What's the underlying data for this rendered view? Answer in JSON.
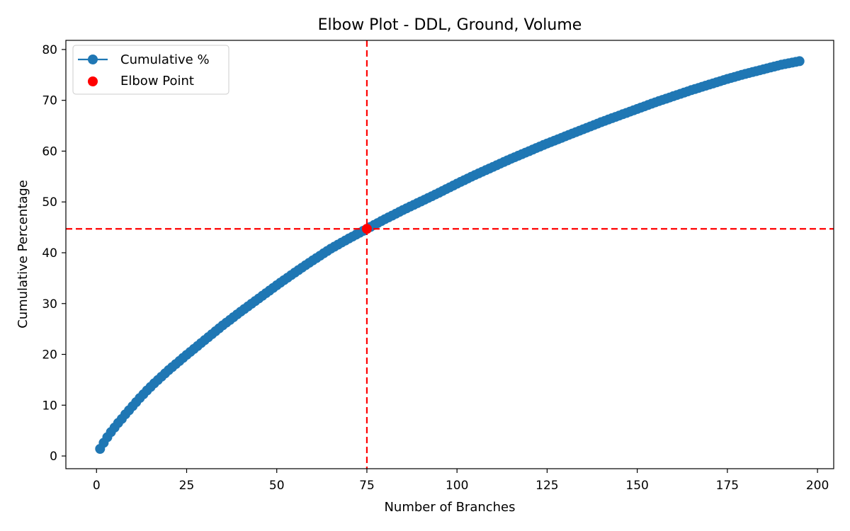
{
  "chart_data": {
    "type": "line",
    "title": "Elbow Plot - DDL, Ground, Volume",
    "xlabel": "Number of Branches",
    "ylabel": "Cumulative Percentage",
    "xlim": [
      -8.5,
      204.5
    ],
    "ylim": [
      -2.5,
      81.8
    ],
    "xticks": [
      0,
      25,
      50,
      75,
      100,
      125,
      150,
      175,
      200
    ],
    "yticks": [
      0,
      10,
      20,
      30,
      40,
      50,
      60,
      70,
      80
    ],
    "grid": false,
    "legend_position": "top-left",
    "series": [
      {
        "name": "Cumulative %",
        "color": "#1f77b4",
        "marker": "circle",
        "x": [
          1,
          2,
          3,
          4,
          5,
          6,
          7,
          8,
          9,
          10,
          12,
          14,
          16,
          18,
          20,
          25,
          30,
          35,
          40,
          45,
          50,
          55,
          60,
          65,
          70,
          75,
          80,
          85,
          90,
          95,
          100,
          105,
          110,
          115,
          120,
          125,
          130,
          135,
          140,
          145,
          150,
          155,
          160,
          165,
          170,
          175,
          180,
          185,
          190,
          195
        ],
        "y": [
          1.4,
          2.6,
          3.7,
          4.7,
          5.6,
          6.5,
          7.3,
          8.2,
          9.0,
          9.8,
          11.4,
          12.9,
          14.3,
          15.6,
          16.9,
          19.9,
          22.8,
          25.7,
          28.4,
          31.0,
          33.6,
          36.1,
          38.5,
          40.8,
          42.8,
          44.7,
          46.6,
          48.4,
          50.1,
          51.8,
          53.6,
          55.3,
          56.9,
          58.5,
          60.0,
          61.5,
          62.9,
          64.3,
          65.7,
          67.0,
          68.3,
          69.6,
          70.8,
          72.0,
          73.1,
          74.2,
          75.2,
          76.1,
          77.0,
          77.7
        ]
      }
    ],
    "elbow": {
      "name": "Elbow Point",
      "x": 75,
      "y": 44.7,
      "color": "#ff0000"
    }
  }
}
